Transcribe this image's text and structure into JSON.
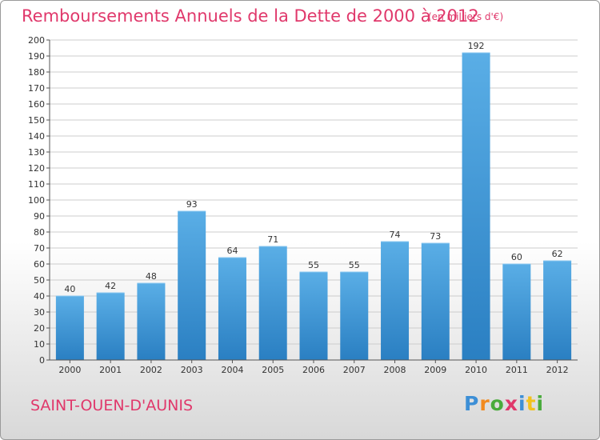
{
  "header": {
    "title": "Remboursements Annuels de la Dette de 2000 à 2012",
    "unit": "(en milliers d'€)"
  },
  "footer": {
    "commune": "SAINT-OUEN-D'AUNIS",
    "brand": [
      {
        "char": "P",
        "color": "#3d8fd6"
      },
      {
        "char": "r",
        "color": "#f28a1e"
      },
      {
        "char": "o",
        "color": "#4aab3c"
      },
      {
        "char": "x",
        "color": "#e0386b"
      },
      {
        "char": "i",
        "color": "#3d8fd6"
      },
      {
        "char": "t",
        "color": "#f2c21e"
      },
      {
        "char": "i",
        "color": "#4aab3c"
      }
    ]
  },
  "chart_data": {
    "type": "bar",
    "categories": [
      "2000",
      "2001",
      "2002",
      "2003",
      "2004",
      "2005",
      "2006",
      "2007",
      "2008",
      "2009",
      "2010",
      "2011",
      "2012"
    ],
    "values": [
      40,
      42,
      48,
      93,
      64,
      71,
      55,
      55,
      74,
      73,
      192,
      60,
      62
    ],
    "ylim": [
      0,
      200
    ],
    "yticks": [
      0,
      10,
      20,
      30,
      40,
      50,
      60,
      70,
      80,
      90,
      100,
      110,
      120,
      130,
      140,
      150,
      160,
      170,
      180,
      190,
      200
    ],
    "grid": true,
    "colors": {
      "bar_top": "#5aaee6",
      "bar_bottom": "#2a7fc2",
      "grid": "#cccccc",
      "axis": "#555555"
    }
  }
}
